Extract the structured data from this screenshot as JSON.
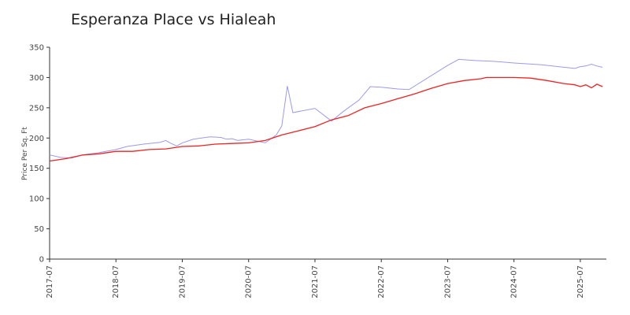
{
  "chart_data": {
    "type": "line",
    "title": "Esperanza Place vs Hialeah",
    "y_label": "Price Per Sq. Ft",
    "xlim": [
      "2017-07",
      "2025-11"
    ],
    "xticks": [
      "2017-07",
      "2018-07",
      "2019-07",
      "2020-07",
      "2021-07",
      "2022-07",
      "2023-07",
      "2024-07",
      "2025-07"
    ],
    "ylim": [
      0,
      350
    ],
    "yticks": [
      0,
      50,
      100,
      150,
      200,
      250,
      300,
      350
    ],
    "grid": false,
    "series": [
      {
        "color": "#9a9aee",
        "x": [
          "2017-07",
          "2017-09",
          "2017-11",
          "2018-01",
          "2018-04",
          "2018-07",
          "2018-09",
          "2018-12",
          "2019-03",
          "2019-04",
          "2019-05",
          "2019-06",
          "2019-07",
          "2019-09",
          "2019-12",
          "2020-02",
          "2020-03",
          "2020-04",
          "2020-05",
          "2020-07",
          "2020-10",
          "2020-12",
          "2021-01",
          "2021-02",
          "2021-03",
          "2021-07",
          "2021-10",
          "2021-12",
          "2022-03",
          "2022-05",
          "2022-07",
          "2022-10",
          "2022-12",
          "2023-07",
          "2023-09",
          "2023-12",
          "2024-03",
          "2024-07",
          "2024-12",
          "2025-04",
          "2025-06",
          "2025-07",
          "2025-08",
          "2025-09",
          "2025-10",
          "2025-11"
        ],
        "values": [
          172,
          168,
          167,
          172,
          176,
          181,
          186,
          190,
          193,
          196,
          191,
          187,
          192,
          198,
          202,
          201,
          198,
          199,
          196,
          198,
          192,
          205,
          220,
          286,
          242,
          249,
          228,
          243,
          263,
          285,
          284,
          281,
          280,
          320,
          330,
          328,
          327,
          324,
          321,
          317,
          315,
          318,
          319,
          322,
          319,
          317
        ]
      },
      {
        "color": "#ee2222",
        "x": [
          "2017-07",
          "2017-10",
          "2018-01",
          "2018-04",
          "2018-07",
          "2018-10",
          "2019-01",
          "2019-04",
          "2019-07",
          "2019-10",
          "2020-01",
          "2020-04",
          "2020-07",
          "2020-10",
          "2021-01",
          "2021-04",
          "2021-07",
          "2021-10",
          "2022-01",
          "2022-04",
          "2022-07",
          "2022-10",
          "2023-01",
          "2023-04",
          "2023-07",
          "2023-10",
          "2024-01",
          "2024-02",
          "2024-07",
          "2024-10",
          "2025-01",
          "2025-04",
          "2025-06",
          "2025-07",
          "2025-08",
          "2025-09",
          "2025-10",
          "2025-11"
        ],
        "values": [
          162,
          166,
          172,
          174,
          178,
          178,
          181,
          182,
          186,
          187,
          190,
          191,
          192,
          196,
          205,
          212,
          219,
          230,
          237,
          250,
          257,
          265,
          273,
          282,
          290,
          295,
          298,
          300,
          300,
          299,
          295,
          290,
          288,
          285,
          288,
          283,
          289,
          285
        ]
      }
    ]
  }
}
